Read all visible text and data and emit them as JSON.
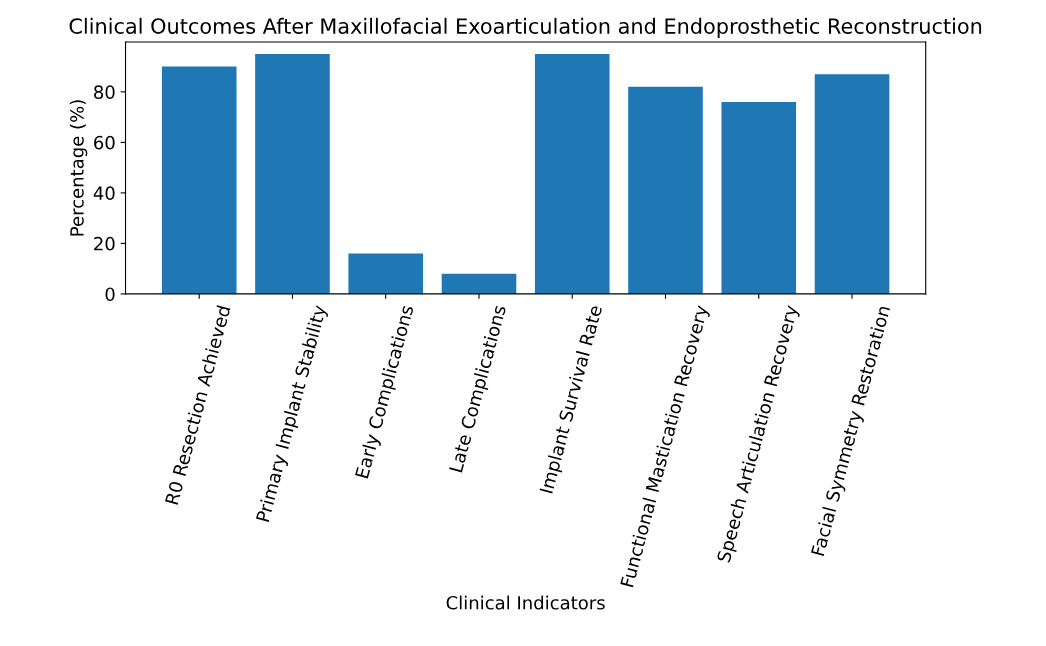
{
  "chart_data": {
    "type": "bar",
    "title": "Clinical Outcomes After Maxillofacial Exoarticulation and Endoprosthetic Reconstruction",
    "xlabel": "Clinical Indicators",
    "ylabel": "Percentage (%)",
    "categories": [
      "R0 Resection Achieved",
      "Primary Implant Stability",
      "Early Complications",
      "Late Complications",
      "Implant Survival Rate",
      "Functional Mastication Recovery",
      "Speech Articulation Recovery",
      "Facial Symmetry Restoration"
    ],
    "values": [
      90,
      95,
      16,
      8,
      95,
      82,
      76,
      87
    ],
    "color": "#1f77b4",
    "ylim": [
      0,
      99.75
    ],
    "yticks": [
      0,
      20,
      40,
      60,
      80
    ]
  }
}
